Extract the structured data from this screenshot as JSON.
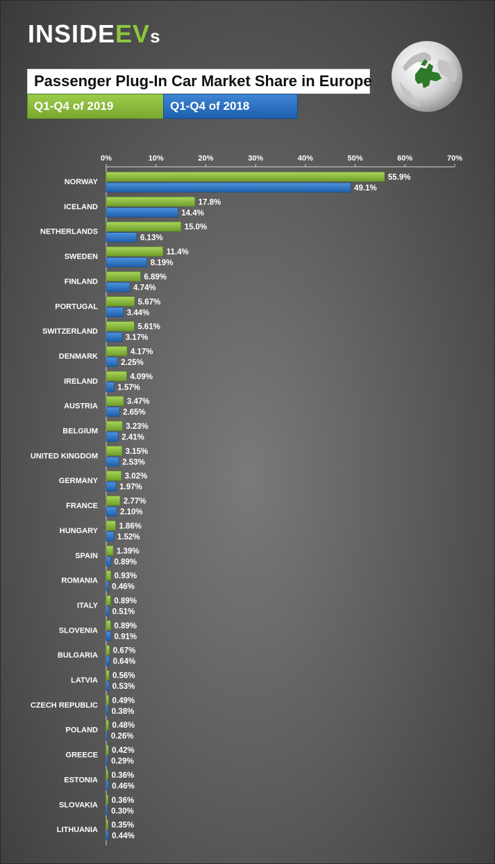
{
  "brand": {
    "logo_inside": "INSIDE",
    "logo_ev": "EV",
    "logo_s": "s"
  },
  "colors": {
    "series_2019": "#8dc63f",
    "series_2018": "#2d73c4"
  },
  "chart_data": {
    "type": "bar",
    "orientation": "horizontal",
    "title": "Passenger Plug-In Car Market Share in Europe",
    "xlim": [
      0,
      70
    ],
    "xticks": [
      "0%",
      "10%",
      "20%",
      "30%",
      "40%",
      "50%",
      "60%",
      "70%"
    ],
    "categories": [
      "NORWAY",
      "ICELAND",
      "NETHERLANDS",
      "SWEDEN",
      "FINLAND",
      "PORTUGAL",
      "SWITZERLAND",
      "DENMARK",
      "IRELAND",
      "AUSTRIA",
      "BELGIUM",
      "UNITED KINGDOM",
      "GERMANY",
      "FRANCE",
      "HUNGARY",
      "SPAIN",
      "ROMANIA",
      "ITALY",
      "SLOVENIA",
      "BULGARIA",
      "LATVIA",
      "CZECH REPUBLIC",
      "POLAND",
      "GREECE",
      "ESTONIA",
      "SLOVAKIA",
      "LITHUANIA"
    ],
    "series": [
      {
        "name": "Q1-Q4 of 2019",
        "values": [
          55.9,
          17.8,
          15.0,
          11.4,
          6.89,
          5.67,
          5.61,
          4.17,
          4.09,
          3.47,
          3.23,
          3.15,
          3.02,
          2.77,
          1.86,
          1.39,
          0.93,
          0.89,
          0.89,
          0.67,
          0.56,
          0.49,
          0.48,
          0.42,
          0.36,
          0.36,
          0.35
        ],
        "labels": [
          "55.9%",
          "17.8%",
          "15.0%",
          "11.4%",
          "6.89%",
          "5.67%",
          "5.61%",
          "4.17%",
          "4.09%",
          "3.47%",
          "3.23%",
          "3.15%",
          "3.02%",
          "2.77%",
          "1.86%",
          "1.39%",
          "0.93%",
          "0.89%",
          "0.89%",
          "0.67%",
          "0.56%",
          "0.49%",
          "0.48%",
          "0.42%",
          "0.36%",
          "0.36%",
          "0.35%"
        ]
      },
      {
        "name": "Q1-Q4 of 2018",
        "values": [
          49.1,
          14.4,
          6.13,
          8.19,
          4.74,
          3.44,
          3.17,
          2.25,
          1.57,
          2.65,
          2.41,
          2.53,
          1.97,
          2.1,
          1.52,
          0.89,
          0.46,
          0.51,
          0.91,
          0.64,
          0.53,
          0.38,
          0.26,
          0.29,
          0.46,
          0.3,
          0.44
        ],
        "labels": [
          "49.1%",
          "14.4%",
          "6.13%",
          "8.19%",
          "4.74%",
          "3.44%",
          "3.17%",
          "2.25%",
          "1.57%",
          "2.65%",
          "2.41%",
          "2.53%",
          "1.97%",
          "2.10%",
          "1.52%",
          "0.89%",
          "0.46%",
          "0.51%",
          "0.91%",
          "0.64%",
          "0.53%",
          "0.38%",
          "0.26%",
          "0.29%",
          "0.46%",
          "0.30%",
          "0.44%"
        ]
      }
    ],
    "legend_position": "top-left",
    "grid": false
  }
}
